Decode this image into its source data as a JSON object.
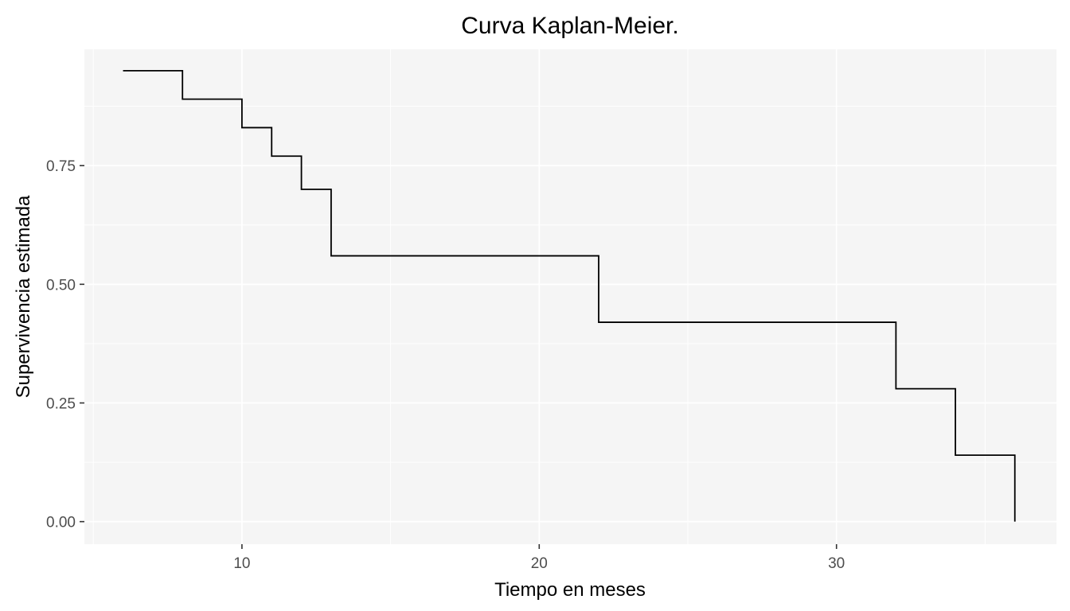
{
  "chart_data": {
    "type": "line",
    "step": true,
    "title": "Curva Kaplan-Meier.",
    "xlabel": "Tiempo en meses",
    "ylabel": "Supervivencia estimada",
    "xlim": [
      4.7,
      37.4
    ],
    "ylim": [
      -0.0475,
      0.995
    ],
    "x_ticks": [
      10,
      20,
      30
    ],
    "x_tick_labels": [
      "10",
      "20",
      "30"
    ],
    "y_ticks": [
      0,
      0.25,
      0.5,
      0.75
    ],
    "y_tick_labels": [
      "0.00",
      "0.25",
      "0.50",
      "0.75"
    ],
    "grid": true,
    "legend": "none",
    "series": [
      {
        "x": [
          6,
          8,
          10,
          11,
          12,
          13,
          22,
          32,
          34,
          36
        ],
        "y": [
          0.95,
          0.89,
          0.83,
          0.77,
          0.7,
          0.56,
          0.42,
          0.28,
          0.14,
          0.0
        ],
        "color": "#000000"
      }
    ],
    "panel_background": "#f5f5f5",
    "grid_color": "#ffffff"
  }
}
